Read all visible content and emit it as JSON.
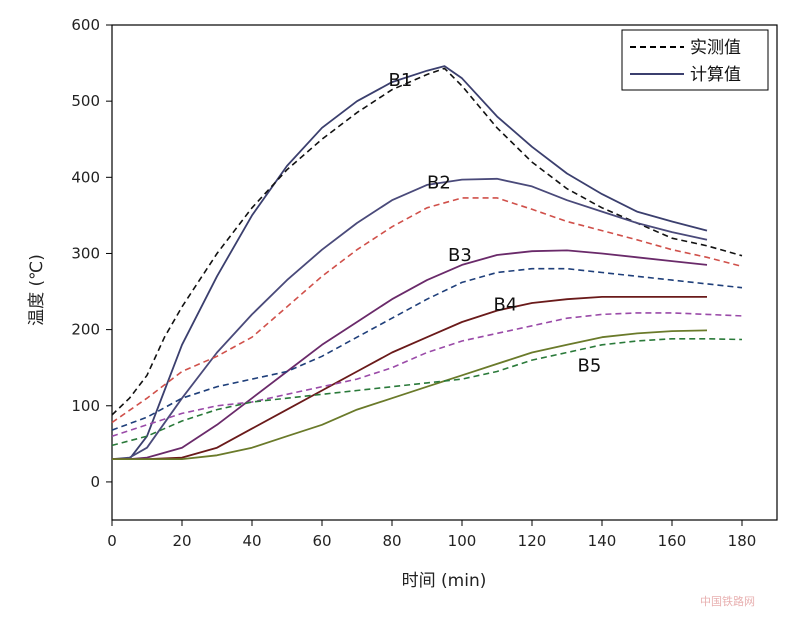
{
  "chart_data": {
    "type": "line",
    "title": "",
    "xlabel": "时间 (min)",
    "ylabel": "温度 (℃)",
    "xlim": [
      0,
      190
    ],
    "ylim": [
      -50,
      600
    ],
    "xticks": [
      0,
      20,
      40,
      60,
      80,
      100,
      120,
      140,
      160,
      180
    ],
    "yticks": [
      0,
      100,
      200,
      300,
      400,
      500,
      600
    ],
    "grid": false,
    "legend": {
      "position": "top-right",
      "entries": [
        {
          "label": "实测值",
          "style": "dashed"
        },
        {
          "label": "计算值",
          "style": "solid"
        }
      ]
    },
    "series": [
      {
        "name": "B1",
        "kind": "计算值",
        "color": "#3b3f6e",
        "dashed": false,
        "x": [
          0,
          5,
          10,
          15,
          20,
          30,
          40,
          50,
          60,
          70,
          80,
          90,
          95,
          100,
          110,
          120,
          130,
          140,
          150,
          160,
          170
        ],
        "y": [
          30,
          30,
          60,
          120,
          180,
          270,
          350,
          415,
          465,
          500,
          525,
          540,
          546,
          530,
          480,
          440,
          405,
          378,
          355,
          342,
          330
        ]
      },
      {
        "name": "B1",
        "kind": "实测值",
        "color": "#111111",
        "dashed": true,
        "x": [
          0,
          5,
          10,
          15,
          20,
          30,
          40,
          50,
          60,
          70,
          80,
          90,
          95,
          100,
          110,
          120,
          130,
          140,
          150,
          160,
          170,
          180
        ],
        "y": [
          88,
          110,
          140,
          190,
          230,
          300,
          360,
          410,
          450,
          485,
          515,
          535,
          543,
          520,
          465,
          420,
          385,
          360,
          340,
          320,
          310,
          297
        ]
      },
      {
        "name": "B2",
        "kind": "计算值",
        "color": "#4a4a7a",
        "dashed": false,
        "x": [
          0,
          5,
          10,
          20,
          30,
          40,
          50,
          60,
          70,
          80,
          90,
          100,
          110,
          120,
          130,
          140,
          150,
          160,
          170
        ],
        "y": [
          30,
          32,
          45,
          110,
          170,
          220,
          265,
          305,
          340,
          370,
          390,
          397,
          398,
          388,
          370,
          355,
          340,
          328,
          318
        ]
      },
      {
        "name": "B2",
        "kind": "实测值",
        "color": "#d0504a",
        "dashed": true,
        "x": [
          0,
          10,
          20,
          30,
          40,
          50,
          60,
          70,
          80,
          90,
          100,
          110,
          120,
          130,
          140,
          150,
          160,
          170,
          180
        ],
        "y": [
          78,
          110,
          145,
          165,
          190,
          230,
          270,
          305,
          335,
          360,
          373,
          373,
          358,
          342,
          330,
          318,
          305,
          295,
          283
        ]
      },
      {
        "name": "B3",
        "kind": "计算值",
        "color": "#6a2a6a",
        "dashed": false,
        "x": [
          0,
          5,
          10,
          20,
          30,
          40,
          50,
          60,
          70,
          80,
          90,
          100,
          110,
          120,
          130,
          140,
          150,
          160,
          170
        ],
        "y": [
          30,
          30,
          32,
          45,
          75,
          110,
          145,
          180,
          210,
          240,
          265,
          285,
          298,
          303,
          304,
          300,
          295,
          290,
          285
        ]
      },
      {
        "name": "B3",
        "kind": "实测值",
        "color": "#1f3f7a",
        "dashed": true,
        "x": [
          0,
          10,
          20,
          30,
          40,
          50,
          60,
          70,
          80,
          90,
          100,
          110,
          120,
          130,
          140,
          150,
          160,
          170,
          180
        ],
        "y": [
          68,
          85,
          110,
          125,
          135,
          145,
          165,
          190,
          215,
          240,
          262,
          275,
          280,
          280,
          275,
          270,
          265,
          260,
          255
        ]
      },
      {
        "name": "B4",
        "kind": "计算值",
        "color": "#6a1a1a",
        "dashed": false,
        "x": [
          0,
          10,
          20,
          30,
          40,
          50,
          60,
          70,
          80,
          90,
          100,
          110,
          120,
          130,
          140,
          150,
          160,
          170
        ],
        "y": [
          30,
          30,
          32,
          45,
          70,
          95,
          120,
          145,
          170,
          190,
          210,
          225,
          235,
          240,
          243,
          243,
          243,
          243
        ]
      },
      {
        "name": "B4",
        "kind": "实测值",
        "color": "#9a4aa8",
        "dashed": true,
        "x": [
          0,
          10,
          20,
          30,
          40,
          50,
          60,
          70,
          80,
          90,
          100,
          110,
          120,
          130,
          140,
          150,
          160,
          170,
          180
        ],
        "y": [
          60,
          75,
          90,
          100,
          105,
          115,
          125,
          135,
          150,
          170,
          185,
          195,
          205,
          215,
          220,
          222,
          222,
          220,
          218
        ]
      },
      {
        "name": "B5",
        "kind": "计算值",
        "color": "#6a7a2a",
        "dashed": false,
        "x": [
          0,
          10,
          20,
          30,
          40,
          50,
          60,
          70,
          80,
          90,
          100,
          110,
          120,
          130,
          140,
          150,
          160,
          170
        ],
        "y": [
          30,
          30,
          30,
          35,
          45,
          60,
          75,
          95,
          110,
          125,
          140,
          155,
          170,
          180,
          190,
          195,
          198,
          199
        ]
      },
      {
        "name": "B5",
        "kind": "实测值",
        "color": "#2a7a3a",
        "dashed": true,
        "x": [
          0,
          10,
          20,
          30,
          40,
          50,
          60,
          70,
          80,
          90,
          100,
          110,
          120,
          130,
          140,
          150,
          160,
          170,
          180
        ],
        "y": [
          48,
          60,
          80,
          95,
          105,
          110,
          115,
          120,
          125,
          130,
          135,
          145,
          160,
          170,
          180,
          185,
          188,
          188,
          187
        ]
      }
    ],
    "annotations": [
      {
        "text": "B1",
        "x": 79,
        "y": 520
      },
      {
        "text": "B2",
        "x": 90,
        "y": 385
      },
      {
        "text": "B3",
        "x": 96,
        "y": 290
      },
      {
        "text": "B4",
        "x": 109,
        "y": 225
      },
      {
        "text": "B5",
        "x": 133,
        "y": 145
      }
    ]
  },
  "watermark": "中国铁路网"
}
